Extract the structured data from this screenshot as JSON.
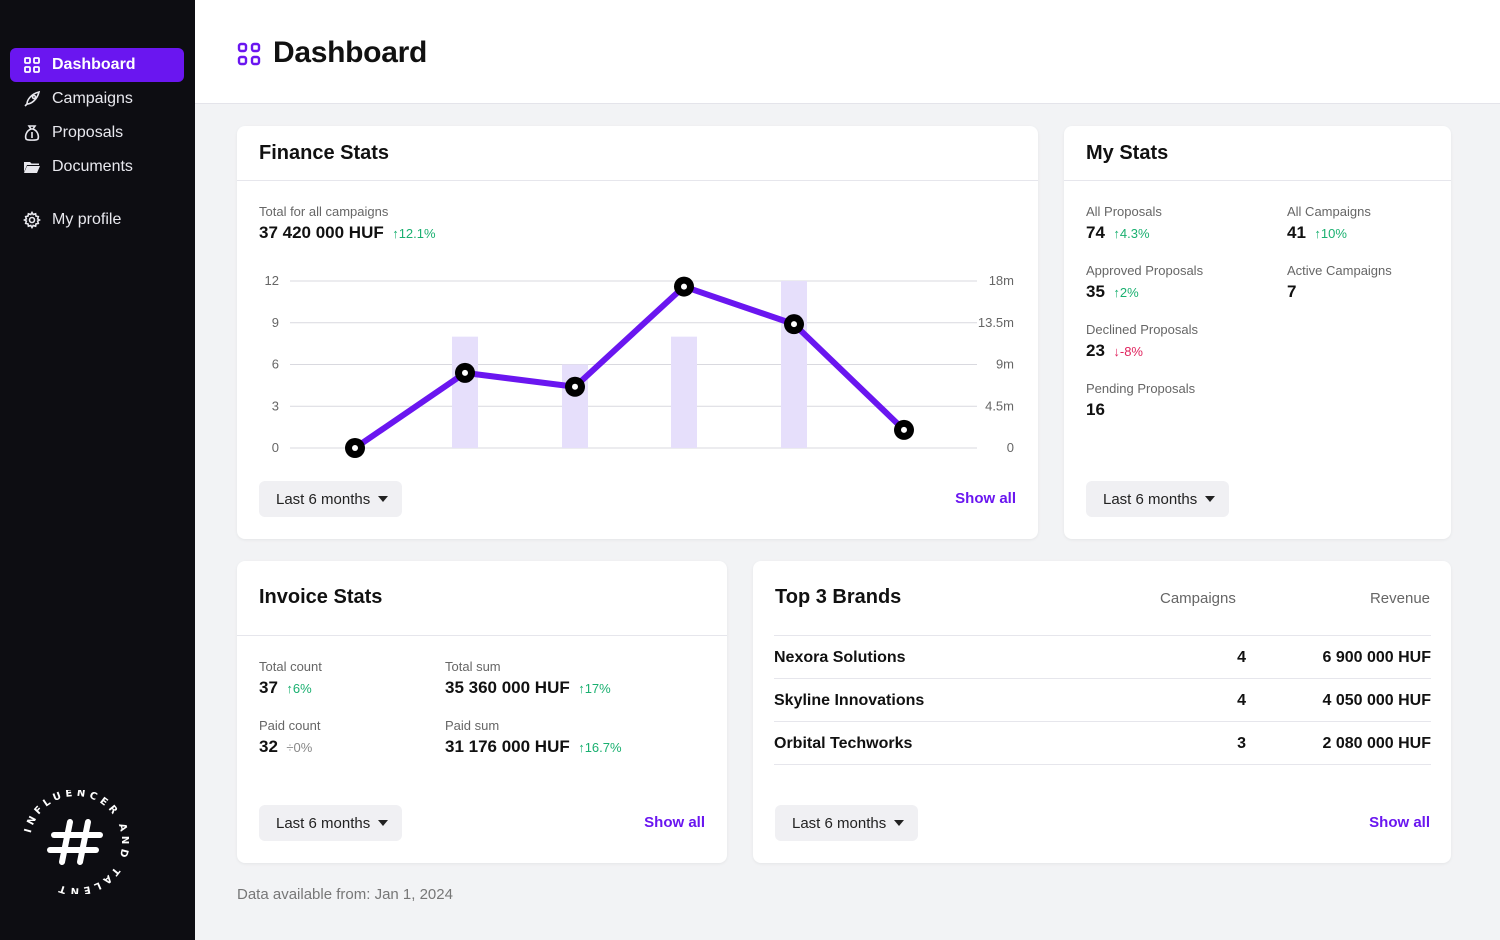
{
  "sidebar": {
    "items": [
      {
        "label": "Dashboard",
        "icon": "grid-icon",
        "active": true
      },
      {
        "label": "Campaigns",
        "icon": "rocket-icon"
      },
      {
        "label": "Proposals",
        "icon": "money-bag-icon"
      },
      {
        "label": "Documents",
        "icon": "folder-icon"
      },
      {
        "label": "My profile",
        "icon": "gear-icon"
      }
    ],
    "logo_text": "INFLUENCER AND TALENT"
  },
  "header": {
    "title": "Dashboard"
  },
  "finance": {
    "title": "Finance Stats",
    "total_label": "Total for all campaigns",
    "total_value": "37 420 000 HUF",
    "total_change": "12.1%",
    "range": "Last 6 months",
    "show_all": "Show all"
  },
  "chart_data": {
    "type": "line",
    "left_axis_ticks": [
      "12",
      "9",
      "6",
      "3",
      "0"
    ],
    "right_axis_ticks": [
      "18m",
      "13.5m",
      "9m",
      "4.5m",
      "0"
    ],
    "ylim_left": [
      0,
      12
    ],
    "ylim_right": [
      0,
      18000000
    ],
    "line_values": [
      0,
      5.4,
      4.4,
      11.6,
      8.9,
      1.3
    ],
    "bar_values": [
      0,
      12000000,
      9000000,
      12000000,
      18000000,
      0
    ],
    "line_color": "#6a16f0",
    "bar_color": "#e6dffb"
  },
  "my_stats": {
    "title": "My Stats",
    "items": [
      {
        "label": "All Proposals",
        "value": "74",
        "change": "4.3%",
        "dir": "up"
      },
      {
        "label": "All Campaigns",
        "value": "41",
        "change": "10%",
        "dir": "up"
      },
      {
        "label": "Approved Proposals",
        "value": "35",
        "change": "2%",
        "dir": "up"
      },
      {
        "label": "Active Campaigns",
        "value": "7",
        "change": "",
        "dir": ""
      },
      {
        "label": "Declined Proposals",
        "value": "23",
        "change": "-8%",
        "dir": "down"
      },
      {
        "label": "Pending Proposals",
        "value": "16",
        "change": "",
        "dir": ""
      }
    ],
    "range": "Last 6 months"
  },
  "invoice": {
    "title": "Invoice Stats",
    "items": [
      {
        "label": "Total count",
        "value": "37",
        "change": "6%",
        "dir": "up"
      },
      {
        "label": "Total sum",
        "value": "35 360 000 HUF",
        "change": "17%",
        "dir": "up"
      },
      {
        "label": "Paid count",
        "value": "32",
        "change": "0%",
        "dir": "neutral"
      },
      {
        "label": "Paid sum",
        "value": "31 176 000 HUF",
        "change": "16.7%",
        "dir": "up"
      }
    ],
    "range": "Last 6 months",
    "show_all": "Show all"
  },
  "brands": {
    "title": "Top 3 Brands",
    "col_campaigns": "Campaigns",
    "col_revenue": "Revenue",
    "rows": [
      {
        "name": "Nexora Solutions",
        "campaigns": "4",
        "revenue": "6 900 000 HUF"
      },
      {
        "name": "Skyline Innovations",
        "campaigns": "4",
        "revenue": "4 050 000 HUF"
      },
      {
        "name": "Orbital Techworks",
        "campaigns": "3",
        "revenue": "2 080 000 HUF"
      }
    ],
    "range": "Last 6 months",
    "show_all": "Show all"
  },
  "footnote": "Data available from: Jan 1, 2024"
}
